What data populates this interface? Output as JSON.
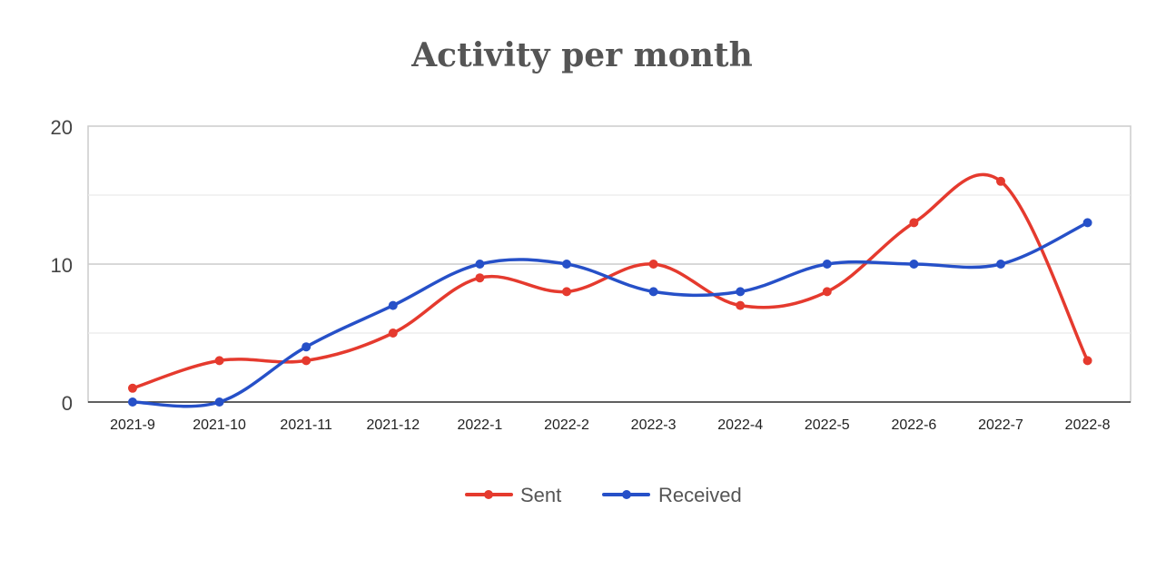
{
  "chart_data": {
    "type": "line",
    "title": "Activity per month",
    "categories": [
      "2021-9",
      "2021-10",
      "2021-11",
      "2021-12",
      "2022-1",
      "2022-2",
      "2022-3",
      "2022-4",
      "2022-5",
      "2022-6",
      "2022-7",
      "2022-8"
    ],
    "series": [
      {
        "name": "Sent",
        "color": "#e53a2e",
        "values": [
          1,
          3,
          3,
          5,
          9,
          8,
          10,
          7,
          8,
          13,
          16,
          3
        ]
      },
      {
        "name": "Received",
        "color": "#2650c8",
        "values": [
          0,
          0,
          4,
          7,
          10,
          10,
          8,
          8,
          10,
          10,
          10,
          13
        ]
      }
    ],
    "ylim": [
      0,
      20
    ],
    "yticks": [
      "0",
      "10",
      "20"
    ],
    "grid": true,
    "smooth": true,
    "legend": "bottom"
  }
}
